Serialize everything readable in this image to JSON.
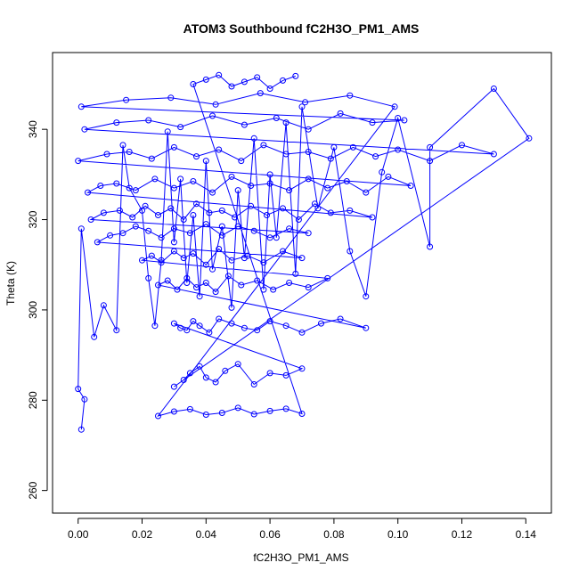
{
  "chart_data": {
    "type": "scatter",
    "title": "ATOM3 Southbound fC2H3O_PM1_AMS",
    "xlabel": "fC2H3O_PM1_AMS",
    "ylabel": "Theta (K)",
    "xlim": [
      -0.008,
      0.148
    ],
    "ylim": [
      255,
      357
    ],
    "xticks": [
      0.0,
      0.02,
      0.04,
      0.06,
      0.08,
      0.1,
      0.12,
      0.14
    ],
    "xtick_labels": [
      "0.00",
      "0.02",
      "0.04",
      "0.06",
      "0.08",
      "0.10",
      "0.12",
      "0.14"
    ],
    "yticks": [
      260,
      280,
      300,
      320,
      340
    ],
    "ytick_labels": [
      "260",
      "280",
      "300",
      "320",
      "340"
    ],
    "grid": false,
    "legend": "none",
    "marker": "open-circle",
    "connected": true,
    "color": "#0000ff",
    "series": [
      {
        "x": [
          0.001,
          0.002,
          0.0,
          0.001,
          0.005,
          0.008,
          0.012,
          0.014,
          0.016,
          0.02,
          0.022,
          0.024,
          0.026,
          0.028,
          0.03,
          0.032,
          0.034,
          0.036,
          0.038,
          0.04,
          0.042,
          0.045,
          0.048,
          0.05,
          0.052,
          0.055,
          0.058,
          0.06,
          0.062,
          0.065,
          0.068,
          0.07,
          0.075,
          0.08,
          0.085,
          0.09,
          0.095,
          0.1,
          0.11,
          0.11,
          0.13,
          0.141,
          0.03,
          0.033,
          0.035,
          0.038,
          0.04,
          0.043,
          0.046,
          0.05,
          0.055,
          0.06,
          0.065,
          0.07,
          0.03,
          0.032,
          0.034,
          0.036,
          0.038,
          0.041,
          0.044,
          0.048,
          0.052,
          0.056,
          0.06,
          0.065,
          0.07,
          0.076,
          0.082,
          0.09,
          0.025,
          0.028,
          0.031,
          0.034,
          0.037,
          0.04,
          0.043,
          0.047,
          0.051,
          0.056,
          0.061,
          0.066,
          0.072,
          0.078,
          0.02,
          0.023,
          0.026,
          0.03,
          0.033,
          0.036,
          0.04,
          0.044,
          0.048,
          0.053,
          0.058,
          0.064,
          0.07,
          0.006,
          0.01,
          0.014,
          0.018,
          0.022,
          0.026,
          0.03,
          0.035,
          0.04,
          0.045,
          0.05,
          0.055,
          0.06,
          0.066,
          0.072,
          0.004,
          0.008,
          0.013,
          0.017,
          0.021,
          0.025,
          0.029,
          0.033,
          0.037,
          0.041,
          0.045,
          0.049,
          0.054,
          0.059,
          0.064,
          0.069,
          0.074,
          0.079,
          0.085,
          0.092,
          0.003,
          0.007,
          0.012,
          0.018,
          0.024,
          0.03,
          0.036,
          0.042,
          0.048,
          0.054,
          0.06,
          0.066,
          0.072,
          0.078,
          0.084,
          0.09,
          0.097,
          0.104,
          0.0,
          0.009,
          0.016,
          0.023,
          0.03,
          0.037,
          0.044,
          0.051,
          0.058,
          0.065,
          0.072,
          0.079,
          0.086,
          0.093,
          0.1,
          0.11,
          0.12,
          0.13,
          0.002,
          0.012,
          0.022,
          0.032,
          0.042,
          0.052,
          0.062,
          0.072,
          0.082,
          0.092,
          0.102,
          0.001,
          0.015,
          0.029,
          0.043,
          0.057,
          0.071,
          0.085,
          0.099,
          0.025,
          0.03,
          0.035,
          0.04,
          0.045,
          0.05,
          0.055,
          0.06,
          0.065,
          0.07,
          0.036,
          0.04,
          0.044,
          0.048,
          0.052,
          0.056,
          0.06,
          0.064,
          0.068
        ],
        "y": [
          273.5,
          280.2,
          282.5,
          318.0,
          294.0,
          301.0,
          295.5,
          336.5,
          327.0,
          322.0,
          307.0,
          296.5,
          311.0,
          339.5,
          315.0,
          329.0,
          306.0,
          321.0,
          303.0,
          333.0,
          309.0,
          318.5,
          300.5,
          326.5,
          311.5,
          338.0,
          304.5,
          330.0,
          316.0,
          341.5,
          308.0,
          345.0,
          322.5,
          336.0,
          313.0,
          303.0,
          330.5,
          342.5,
          314.0,
          336.0,
          349.0,
          338.0,
          283.0,
          284.5,
          286.0,
          287.5,
          285.0,
          284.0,
          286.5,
          288.0,
          283.5,
          286.0,
          285.5,
          287.0,
          297.0,
          296.0,
          295.5,
          297.5,
          296.5,
          295.0,
          298.0,
          297.0,
          296.0,
          295.5,
          297.5,
          296.5,
          295.0,
          297.0,
          298.0,
          296.0,
          305.5,
          306.5,
          304.5,
          307.0,
          305.0,
          306.0,
          304.0,
          307.5,
          305.5,
          306.5,
          304.5,
          306.0,
          305.0,
          307.0,
          311.0,
          312.0,
          310.5,
          313.0,
          311.5,
          312.5,
          310.0,
          313.5,
          311.0,
          312.0,
          310.5,
          313.0,
          311.5,
          315.0,
          316.5,
          317.0,
          318.5,
          317.5,
          316.0,
          318.0,
          317.0,
          319.0,
          316.5,
          318.5,
          317.5,
          316.0,
          318.0,
          317.0,
          320.0,
          321.5,
          322.0,
          320.5,
          323.0,
          321.0,
          322.5,
          320.0,
          323.5,
          321.5,
          322.0,
          320.5,
          323.0,
          321.0,
          322.5,
          320.0,
          323.5,
          321.5,
          322.0,
          320.5,
          326.0,
          327.5,
          328.0,
          326.5,
          329.0,
          327.0,
          328.5,
          326.0,
          329.5,
          327.5,
          328.0,
          326.5,
          329.0,
          327.0,
          328.5,
          326.0,
          329.5,
          327.5,
          333.0,
          334.5,
          335.0,
          333.5,
          336.0,
          334.0,
          335.5,
          333.0,
          336.5,
          334.5,
          335.0,
          333.5,
          336.0,
          334.0,
          335.5,
          333.0,
          336.5,
          334.5,
          340.0,
          341.5,
          342.0,
          340.5,
          343.0,
          341.0,
          342.5,
          340.0,
          343.5,
          341.5,
          342.0,
          345.0,
          346.5,
          347.0,
          345.5,
          348.0,
          346.0,
          347.5,
          345.0,
          276.5,
          277.5,
          278.0,
          276.8,
          277.2,
          278.3,
          276.9,
          277.6,
          278.1,
          277.0,
          350.0,
          351.0,
          352.0,
          349.5,
          350.5,
          351.5,
          349.0,
          350.8,
          351.8
        ]
      }
    ]
  }
}
